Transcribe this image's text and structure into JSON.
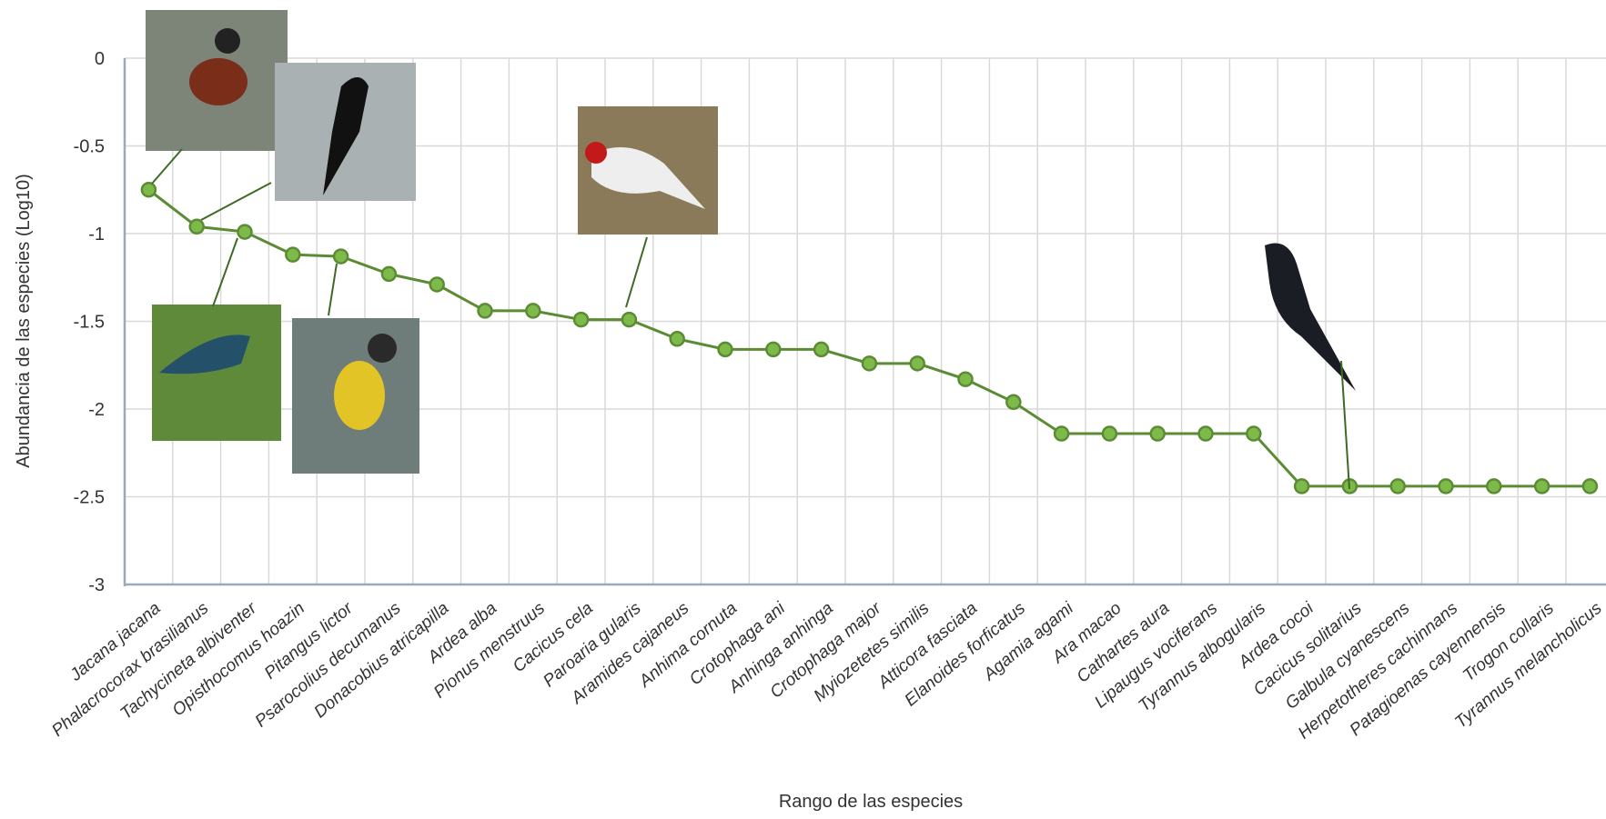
{
  "chart_data": {
    "type": "line",
    "x_label": "Rango de las especies",
    "y_label": "Abundancia de las especies (Log10)",
    "categories": [
      "Jacana jacana",
      "Phalacrocorax brasilianus",
      "Tachycineta albiventer",
      "Opisthocomus hoazin",
      "Pitangus lictor",
      "Psarocolius decumanus",
      "Donacobius atricapilla",
      "Ardea alba",
      "Pionus menstruus",
      "Cacicus cela",
      "Paroaria gularis",
      "Aramides cajaneus",
      "Anhima cornuta",
      "Crotophaga ani",
      "Anhinga anhinga",
      "Crotophaga major",
      "Myiozetetes similis",
      "Atticora fasciata",
      "Elanoides forficatus",
      "Agamia agami",
      "Ara macao",
      "Cathartes aura",
      "Lipaugus vociferans",
      "Tyrannus albogularis",
      "Ardea cocoi",
      "Cacicus solitarius",
      "Galbula cyanescens",
      "Herpetotheres cachinnans",
      "Patagioenas cayennensis",
      "Trogon collaris",
      "Tyrannus melancholicus"
    ],
    "values": [
      -0.75,
      -0.96,
      -0.99,
      -1.12,
      -1.13,
      -1.23,
      -1.29,
      -1.44,
      -1.44,
      -1.49,
      -1.49,
      -1.6,
      -1.66,
      -1.66,
      -1.66,
      -1.74,
      -1.74,
      -1.83,
      -1.96,
      -2.14,
      -2.14,
      -2.14,
      -2.14,
      -2.14,
      -2.44,
      -2.44,
      -2.44,
      -2.44,
      -2.44,
      -2.44,
      -2.44
    ],
    "color": "#5b8c35",
    "marker_color": "#7dba4a",
    "ylim": [
      -3,
      0
    ],
    "yticks": [
      -3,
      -2.5,
      -2,
      -1.5,
      -1,
      -0.5,
      0
    ],
    "grid": true
  }
}
